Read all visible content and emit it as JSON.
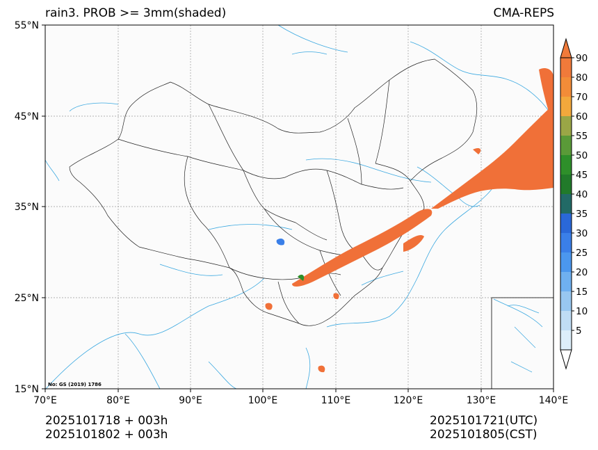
{
  "title_left": "rain3. PROB >= 3mm(shaded)",
  "title_right": "CMA-REPS",
  "map_note": "No: GS (2019) 1786",
  "lat_labels": [
    "55°N",
    "45°N",
    "35°N",
    "25°N",
    "15°N"
  ],
  "lon_labels": [
    "70°E",
    "80°E",
    "90°E",
    "100°E",
    "110°E",
    "120°E",
    "130°E",
    "140°E"
  ],
  "colorbar_labels": [
    "90",
    "80",
    "70",
    "60",
    "55",
    "50",
    "45",
    "40",
    "35",
    "30",
    "25",
    "20",
    "15",
    "10",
    "5"
  ],
  "colorbar_colors": [
    "#ddeefa",
    "#c0ddf5",
    "#98c7f0",
    "#6fb0f0",
    "#4b97ee",
    "#3a7fe8",
    "#2a68d8",
    "#226a66",
    "#217a2a",
    "#2e8f2a",
    "#5a9a38",
    "#9aa646",
    "#f2a83c",
    "#f28c38",
    "#f07a3a"
  ],
  "footer": {
    "left_line1": "2025101718  +  003h",
    "left_line2": "2025101802  +  003h",
    "right_line1": "2025101721(UTC)",
    "right_line2": "2025101805(CST)"
  }
}
